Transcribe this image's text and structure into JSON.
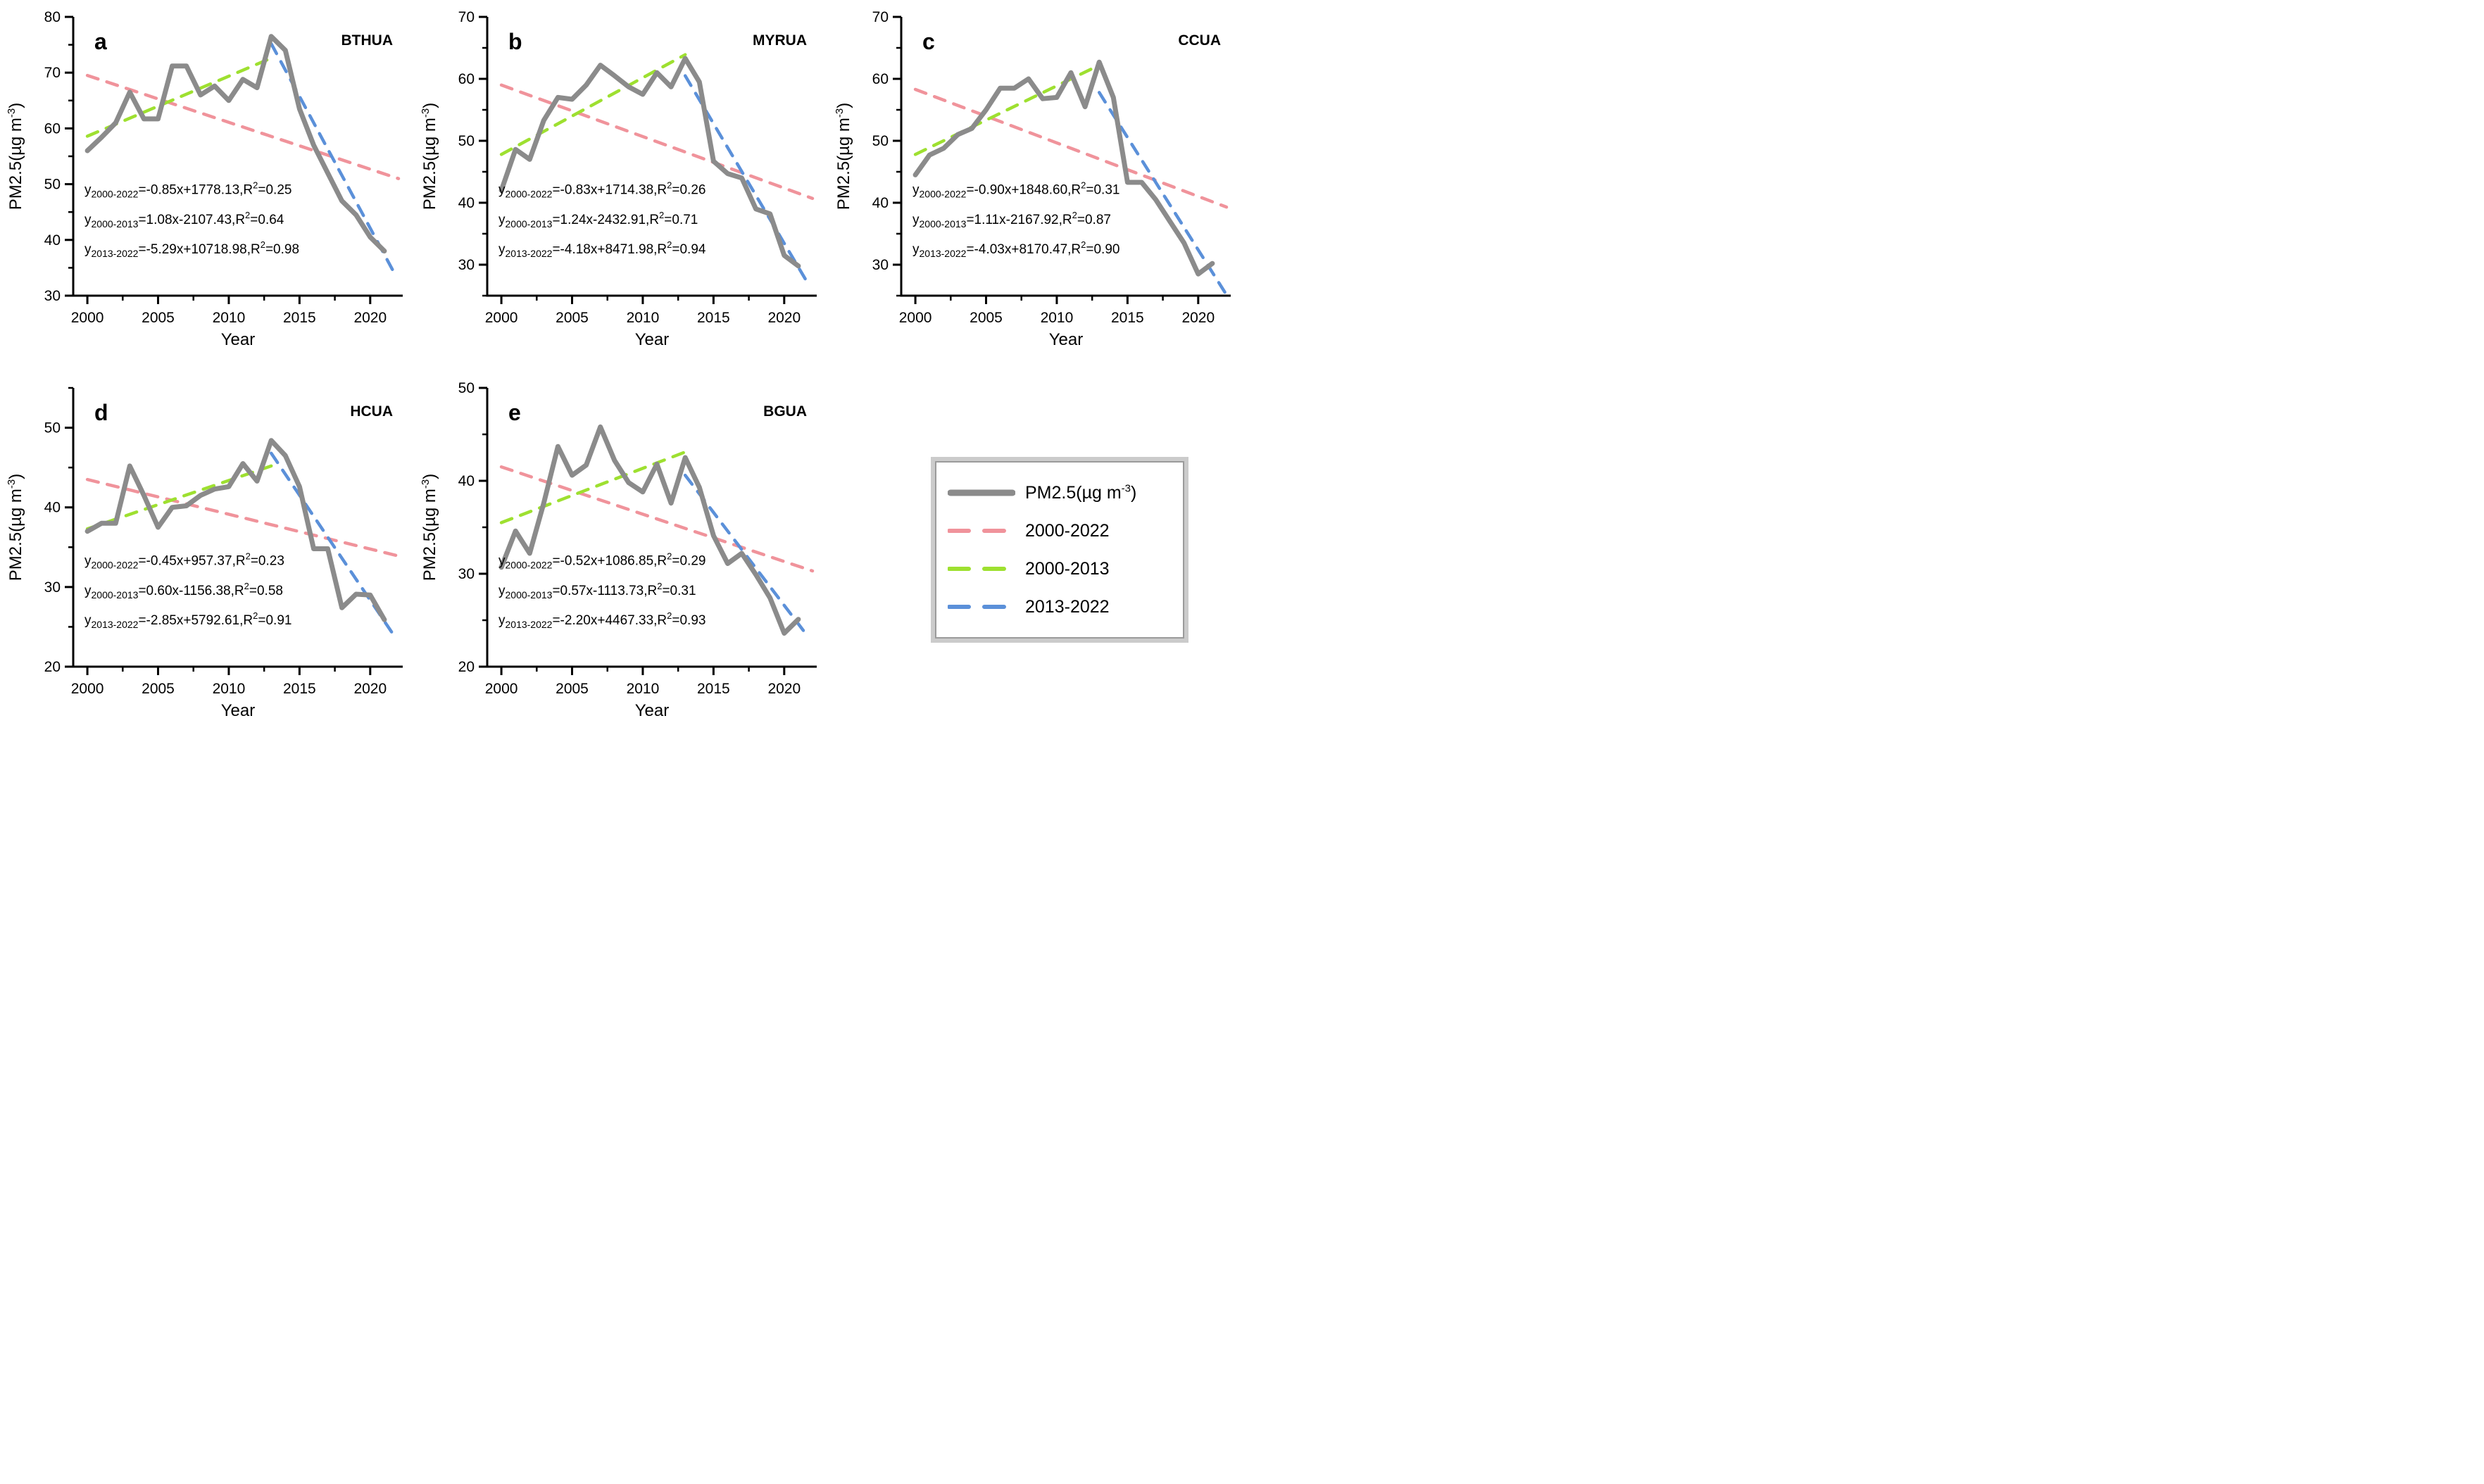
{
  "figure": {
    "xlabel": "Year",
    "ylabel": {
      "pre": "PM2.5(µg m",
      "sup": "-3",
      "post": ")"
    },
    "xlim": [
      1999,
      2022.3
    ],
    "x_major_ticks": [
      2000,
      2005,
      2010,
      2015,
      2020
    ],
    "x_minor_ticks": [
      2002.5,
      2007.5,
      2012.5,
      2017.5
    ],
    "colors": {
      "pm25": "#8b8b8b",
      "trend_2000_2022": "#f0939b",
      "trend_2000_2013": "#9ee030",
      "trend_2013_2022": "#5b90d9",
      "axis": "#000000"
    },
    "years": [
      2000,
      2001,
      2002,
      2003,
      2004,
      2005,
      2006,
      2007,
      2008,
      2009,
      2010,
      2011,
      2012,
      2013,
      2014,
      2015,
      2016,
      2017,
      2018,
      2019,
      2020,
      2021
    ]
  },
  "chart_data": [
    {
      "id": "a",
      "type": "line",
      "letter": "a",
      "title": "BTHUA",
      "ylim": [
        30,
        80
      ],
      "y_major_ticks": [
        30,
        40,
        50,
        60,
        70,
        80
      ],
      "y_minor_ticks": [
        35,
        45,
        55,
        65,
        75
      ],
      "pm25": [
        56,
        58.4,
        61,
        66.5,
        61.7,
        61.7,
        71.2,
        71.2,
        66,
        67.6,
        65,
        68.8,
        67.3,
        76.5,
        74,
        63.5,
        57,
        52,
        47,
        44.5,
        40.5,
        38
      ],
      "trends": {
        "t2000_2022": {
          "x": [
            2000,
            2022
          ],
          "y": [
            69.5,
            51
          ]
        },
        "t2000_2013": {
          "x": [
            2000,
            2013
          ],
          "y": [
            58.6,
            72.6
          ]
        },
        "t2013_2022": {
          "x": [
            2013,
            2021.8
          ],
          "y": [
            75.2,
            33.6
          ]
        }
      },
      "equations": [
        {
          "lhs": "y",
          "sub": "2000-2022",
          "body": "=-0.85x+1778.13,R",
          "sup": "2",
          "tail": "=0.25"
        },
        {
          "lhs": "y",
          "sub": "2000-2013",
          "body": "=1.08x-2107.43,R",
          "sup": "2",
          "tail": "=0.64"
        },
        {
          "lhs": "y",
          "sub": "2013-2022",
          "body": "=-5.29x+10718.98,R",
          "sup": "2",
          "tail": "=0.98"
        }
      ]
    },
    {
      "id": "b",
      "type": "line",
      "letter": "b",
      "title": "MYRUA",
      "ylim": [
        25,
        70
      ],
      "y_major_ticks": [
        30,
        40,
        50,
        60,
        70
      ],
      "y_minor_ticks": [
        25,
        35,
        45,
        55,
        65
      ],
      "pm25": [
        42,
        48.6,
        47,
        53.3,
        57,
        56.7,
        59,
        62.2,
        60.5,
        58.7,
        57.5,
        61,
        58.7,
        63.3,
        59.5,
        46.7,
        44.7,
        44,
        39,
        38.2,
        31.5,
        29.8
      ],
      "trends": {
        "t2000_2022": {
          "x": [
            2000,
            2022
          ],
          "y": [
            59,
            40.7
          ]
        },
        "t2000_2013": {
          "x": [
            2000,
            2013
          ],
          "y": [
            47.8,
            63.9
          ]
        },
        "t2013_2022": {
          "x": [
            2013,
            2021.8
          ],
          "y": [
            60.5,
            26.5
          ]
        }
      },
      "equations": [
        {
          "lhs": "y",
          "sub": "2000-2022",
          "body": "=-0.83x+1714.38,R",
          "sup": "2",
          "tail": "=0.26"
        },
        {
          "lhs": "y",
          "sub": "2000-2013",
          "body": "=1.24x-2432.91,R",
          "sup": "2",
          "tail": "=0.71"
        },
        {
          "lhs": "y",
          "sub": "2013-2022",
          "body": "=-4.18x+8471.98,R",
          "sup": "2",
          "tail": "=0.94"
        }
      ]
    },
    {
      "id": "c",
      "type": "line",
      "letter": "c",
      "title": "CCUA",
      "ylim": [
        25,
        70
      ],
      "y_major_ticks": [
        30,
        40,
        50,
        60,
        70
      ],
      "y_minor_ticks": [
        25,
        35,
        45,
        55,
        65
      ],
      "pm25": [
        44.5,
        47.7,
        48.8,
        51,
        52,
        55,
        58.5,
        58.5,
        60,
        56.8,
        57,
        61,
        55.5,
        62.7,
        57,
        43.3,
        43.3,
        40.5,
        37,
        33.5,
        28.5,
        30.2
      ],
      "trends": {
        "t2000_2022": {
          "x": [
            2000,
            2022
          ],
          "y": [
            58.3,
            39.3
          ]
        },
        "t2000_2013": {
          "x": [
            2000,
            2013
          ],
          "y": [
            47.8,
            62.2
          ]
        },
        "t2013_2022": {
          "x": [
            2013,
            2021.9
          ],
          "y": [
            57.8,
            25.5
          ]
        }
      },
      "equations": [
        {
          "lhs": "y",
          "sub": "2000-2022",
          "body": "=-0.90x+1848.60,R",
          "sup": "2",
          "tail": "=0.31"
        },
        {
          "lhs": "y",
          "sub": "2000-2013",
          "body": "=1.11x-2167.92,R",
          "sup": "2",
          "tail": "=0.87"
        },
        {
          "lhs": "y",
          "sub": "2013-2022",
          "body": "=-4.03x+8170.47,R",
          "sup": "2",
          "tail": "=0.90"
        }
      ]
    },
    {
      "id": "d",
      "type": "line",
      "letter": "d",
      "title": "HCUA",
      "ylim": [
        20,
        55
      ],
      "y_major_ticks": [
        20,
        30,
        40,
        50
      ],
      "y_minor_ticks": [
        25,
        35,
        45,
        55
      ],
      "pm25": [
        37,
        38,
        38,
        45.2,
        41.5,
        37.5,
        40,
        40.2,
        41.5,
        42.3,
        42.6,
        45.5,
        43.3,
        48.4,
        46.5,
        42.6,
        34.8,
        34.8,
        27.4,
        29.1,
        29,
        25.9
      ],
      "trends": {
        "t2000_2022": {
          "x": [
            2000,
            2022
          ],
          "y": [
            43.5,
            33.9
          ]
        },
        "t2000_2013": {
          "x": [
            2000,
            2013
          ],
          "y": [
            37.3,
            45.2
          ]
        },
        "t2013_2022": {
          "x": [
            2013,
            2021.8
          ],
          "y": [
            46.8,
            23.6
          ]
        }
      },
      "equations": [
        {
          "lhs": "y",
          "sub": "2000-2022",
          "body": "=-0.45x+957.37,R",
          "sup": "2",
          "tail": "=0.23"
        },
        {
          "lhs": "y",
          "sub": "2000-2013",
          "body": "=0.60x-1156.38,R",
          "sup": "2",
          "tail": "=0.58"
        },
        {
          "lhs": "y",
          "sub": "2013-2022",
          "body": "=-2.85x+5792.61,R",
          "sup": "2",
          "tail": "=0.91"
        }
      ]
    },
    {
      "id": "e",
      "type": "line",
      "letter": "e",
      "title": "BGUA",
      "ylim": [
        20,
        50
      ],
      "y_major_ticks": [
        20,
        30,
        40,
        50
      ],
      "y_minor_ticks": [
        25,
        35,
        45
      ],
      "pm25": [
        30.7,
        34.6,
        32.2,
        37.6,
        43.7,
        40.6,
        41.7,
        45.8,
        42.2,
        39.8,
        38.8,
        41.8,
        37.6,
        42.5,
        39.3,
        34.1,
        31.1,
        32.2,
        29.9,
        27.4,
        23.6,
        25.1
      ],
      "trends": {
        "t2000_2022": {
          "x": [
            2000,
            2022
          ],
          "y": [
            41.5,
            30.3
          ]
        },
        "t2000_2013": {
          "x": [
            2000,
            2013
          ],
          "y": [
            35.5,
            43.1
          ]
        },
        "t2013_2022": {
          "x": [
            2013,
            2021.7
          ],
          "y": [
            40.6,
            23.2
          ]
        }
      },
      "equations": [
        {
          "lhs": "y",
          "sub": "2000-2022",
          "body": "=-0.52x+1086.85,R",
          "sup": "2",
          "tail": "=0.29"
        },
        {
          "lhs": "y",
          "sub": "2000-2013",
          "body": "=0.57x-1113.73,R",
          "sup": "2",
          "tail": "=0.31"
        },
        {
          "lhs": "y",
          "sub": "2013-2022",
          "body": "=-2.20x+4467.33,R",
          "sup": "2",
          "tail": "=0.93"
        }
      ]
    }
  ],
  "legend": {
    "position": "bottom-right",
    "items": [
      {
        "key": "pm25",
        "style": "solid-thick",
        "label_pre": "PM2.5(µg m",
        "label_sup": "-3",
        "label_post": ")"
      },
      {
        "key": "trend_2000_2022",
        "style": "dashed",
        "label": "2000-2022"
      },
      {
        "key": "trend_2000_2013",
        "style": "dashed",
        "label": "2000-2013"
      },
      {
        "key": "trend_2013_2022",
        "style": "dashed",
        "label": "2013-2022"
      }
    ]
  }
}
